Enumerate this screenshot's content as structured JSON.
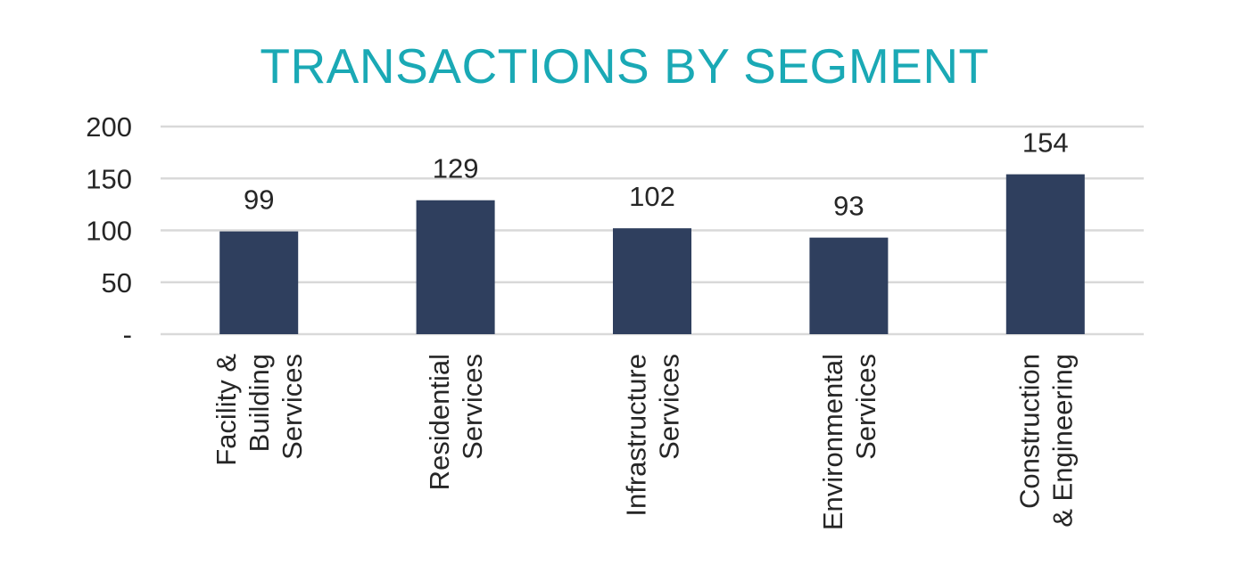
{
  "chart_data": {
    "type": "bar",
    "title": "TRANSACTIONS BY SEGMENT",
    "categories": [
      [
        "Facility &",
        "Building",
        "Services"
      ],
      [
        "Residential",
        "Services"
      ],
      [
        "Infrastructure",
        "Services"
      ],
      [
        "Environmental",
        "Services"
      ],
      [
        "Construction",
        "& Engineering"
      ]
    ],
    "values": [
      99,
      129,
      102,
      93,
      154
    ],
    "data_labels": [
      "99",
      "129",
      "102",
      "93",
      "154"
    ],
    "y_ticks": [
      {
        "value": 0,
        "label": "-"
      },
      {
        "value": 50,
        "label": "50"
      },
      {
        "value": 100,
        "label": "100"
      },
      {
        "value": 150,
        "label": "150"
      },
      {
        "value": 200,
        "label": "200"
      }
    ],
    "ylim": [
      0,
      200
    ],
    "grid": true,
    "xlabel": "",
    "ylabel": "",
    "colors": {
      "bar": "#2f3f5e",
      "title": "#1aa9b5",
      "grid": "#d9d9d9",
      "text": "#262626"
    }
  }
}
